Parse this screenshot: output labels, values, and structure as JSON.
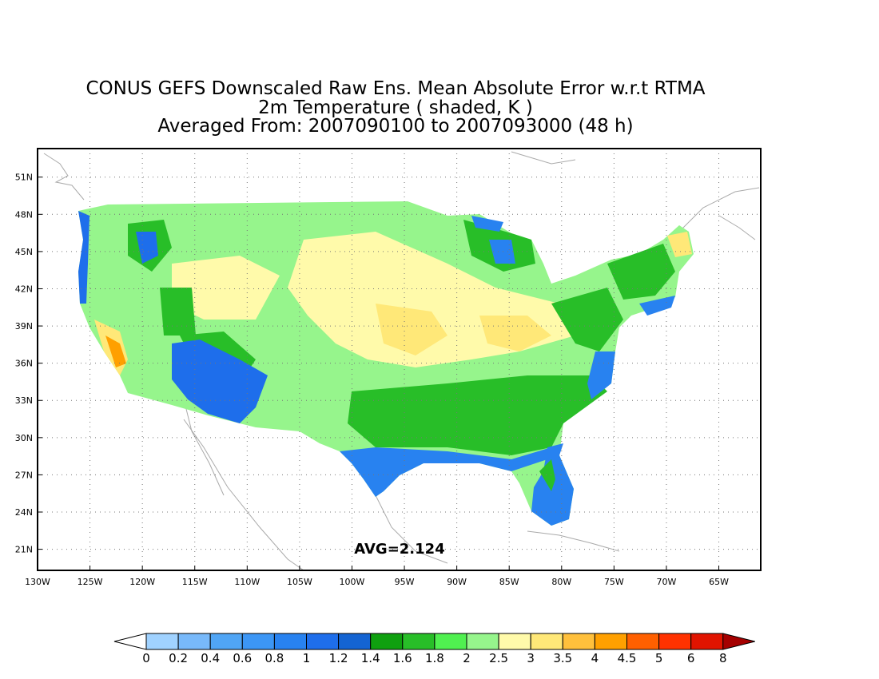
{
  "title": {
    "line1": "CONUS GEFS Downscaled Raw Ens. Mean Absolute Error w.r.t RTMA",
    "line2": "2m Temperature ( shaded, K )",
    "line3": "Averaged From: 2007090100 to 2007093000 (48 h)"
  },
  "map": {
    "lon_range": [
      -130,
      -61
    ],
    "lat_range": [
      19.3,
      53.3
    ],
    "lon_ticks": [
      {
        "value": -130,
        "label": "130W"
      },
      {
        "value": -125,
        "label": "125W"
      },
      {
        "value": -120,
        "label": "120W"
      },
      {
        "value": -115,
        "label": "115W"
      },
      {
        "value": -110,
        "label": "110W"
      },
      {
        "value": -105,
        "label": "105W"
      },
      {
        "value": -100,
        "label": "100W"
      },
      {
        "value": -95,
        "label": "95W"
      },
      {
        "value": -90,
        "label": "90W"
      },
      {
        "value": -85,
        "label": "85W"
      },
      {
        "value": -80,
        "label": "80W"
      },
      {
        "value": -75,
        "label": "75W"
      },
      {
        "value": -70,
        "label": "70W"
      },
      {
        "value": -65,
        "label": "65W"
      }
    ],
    "lat_ticks": [
      {
        "value": 21,
        "label": "21N"
      },
      {
        "value": 24,
        "label": "24N"
      },
      {
        "value": 27,
        "label": "27N"
      },
      {
        "value": 30,
        "label": "30N"
      },
      {
        "value": 33,
        "label": "33N"
      },
      {
        "value": 36,
        "label": "36N"
      },
      {
        "value": 39,
        "label": "39N"
      },
      {
        "value": 42,
        "label": "42N"
      },
      {
        "value": 45,
        "label": "45N"
      },
      {
        "value": 48,
        "label": "48N"
      },
      {
        "value": 51,
        "label": "51N"
      }
    ],
    "grid": true,
    "annotation": "AVG=2.124"
  },
  "colorbar": {
    "labels": [
      "0",
      "0.2",
      "0.4",
      "0.6",
      "0.8",
      "1",
      "1.2",
      "1.4",
      "1.6",
      "1.8",
      "2",
      "2.5",
      "3",
      "3.5",
      "4",
      "4.5",
      "5",
      "6",
      "8"
    ],
    "under_color": "#ffffff",
    "over_color": "#a50000",
    "colors": [
      "#a0d2ff",
      "#78b9fa",
      "#50a5f5",
      "#3c96f5",
      "#2882f0",
      "#1e6eeb",
      "#1464d2",
      "#0fa00f",
      "#28be28",
      "#50f050",
      "#96f58c",
      "#fffaaa",
      "#ffe878",
      "#ffc03c",
      "#ffa000",
      "#ff6000",
      "#ff3200",
      "#e11400"
    ]
  },
  "chart_data": {
    "type": "heatmap",
    "title": "CONUS GEFS Downscaled Raw Ens. Mean Absolute Error w.r.t RTMA",
    "subtitle": "2m Temperature ( shaded, K )",
    "period": "Averaged From: 2007090100 to 2007093000 (48 h)",
    "xlim": [
      -130,
      -61
    ],
    "ylim": [
      19.3,
      53.3
    ],
    "regions": [
      {
        "name": "",
        "lat": [
          44,
          49
        ],
        "lon": [
          -124,
          -116
        ],
        "mae": 1.6
      },
      {
        "name": "",
        "lat": [
          36,
          40
        ],
        "lon": [
          -123,
          -120
        ],
        "mae": 4.0
      },
      {
        "name": "",
        "lat": [
          31,
          37
        ],
        "lon": [
          -117,
          -108
        ],
        "mae": 1.2
      },
      {
        "name": "",
        "lat": [
          38,
          45
        ],
        "lon": [
          -105,
          -92
        ],
        "mae": 2.7
      },
      {
        "name": "",
        "lat": [
          37,
          41
        ],
        "lon": [
          -97,
          -93
        ],
        "mae": 3.4
      },
      {
        "name": "",
        "lat": [
          26,
          30
        ],
        "lon": [
          -97,
          -82
        ],
        "mae": 1.0
      },
      {
        "name": "",
        "lat": [
          25,
          30
        ],
        "lon": [
          -82,
          -80
        ],
        "mae": 1.8
      },
      {
        "name": "",
        "lat": [
          35,
          41
        ],
        "lon": [
          -87,
          -80
        ],
        "mae": 2.4
      },
      {
        "name": "",
        "lat": [
          42,
          47
        ],
        "lon": [
          -74,
          -68
        ],
        "mae": 2.2
      }
    ],
    "domain_average": 2.124
  }
}
